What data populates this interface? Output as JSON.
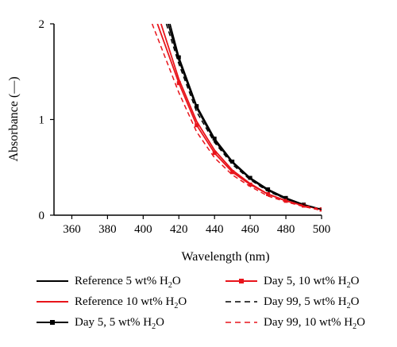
{
  "chart_data": {
    "type": "line",
    "xlabel": "Wavelength (nm)",
    "ylabel": "Absorbance (—)",
    "xlim": [
      350,
      500
    ],
    "ylim": [
      0,
      2
    ],
    "xticks": [
      360,
      380,
      400,
      420,
      440,
      460,
      480,
      500
    ],
    "yticks": [
      0,
      1,
      2
    ],
    "grid": false,
    "legend_position": "bottom",
    "series": [
      {
        "name": "Reference 5 wt% H2O",
        "color": "#000000",
        "dash": "solid",
        "marker": "none",
        "x": [
          414,
          420,
          430,
          440,
          450,
          460,
          470,
          480,
          490,
          500
        ],
        "y": [
          2.0,
          1.62,
          1.12,
          0.78,
          0.55,
          0.38,
          0.26,
          0.17,
          0.11,
          0.06
        ]
      },
      {
        "name": "Reference 10 wt% H2O",
        "color": "#e8141b",
        "dash": "solid",
        "marker": "none",
        "x": [
          410,
          420,
          430,
          440,
          450,
          460,
          470,
          480,
          490,
          500
        ],
        "y": [
          2.0,
          1.42,
          0.98,
          0.68,
          0.47,
          0.33,
          0.22,
          0.15,
          0.1,
          0.06
        ]
      },
      {
        "name": "Day 5, 5 wt% H2O",
        "color": "#000000",
        "dash": "solid",
        "marker": "square",
        "x": [
          415,
          420,
          430,
          440,
          450,
          460,
          470,
          480,
          490,
          500
        ],
        "y": [
          2.0,
          1.65,
          1.14,
          0.8,
          0.56,
          0.39,
          0.27,
          0.18,
          0.11,
          0.06
        ]
      },
      {
        "name": "Day 5, 10 wt% H2O",
        "color": "#e8141b",
        "dash": "solid",
        "marker": "square",
        "x": [
          408,
          420,
          430,
          440,
          450,
          460,
          470,
          480,
          490,
          500
        ],
        "y": [
          2.0,
          1.38,
          0.94,
          0.65,
          0.45,
          0.32,
          0.22,
          0.15,
          0.1,
          0.06
        ]
      },
      {
        "name": "Day 99, 5 wt% H2O",
        "color": "#000000",
        "dash": "dashed",
        "marker": "none",
        "x": [
          413,
          420,
          430,
          440,
          450,
          460,
          470,
          480,
          490,
          500
        ],
        "y": [
          2.0,
          1.58,
          1.08,
          0.76,
          0.53,
          0.37,
          0.25,
          0.17,
          0.11,
          0.06
        ]
      },
      {
        "name": "Day 99, 10 wt% H2O",
        "color": "#e8141b",
        "dash": "dashed",
        "marker": "none",
        "x": [
          405,
          420,
          430,
          440,
          450,
          460,
          470,
          480,
          490,
          500
        ],
        "y": [
          2.0,
          1.28,
          0.87,
          0.6,
          0.42,
          0.3,
          0.2,
          0.14,
          0.09,
          0.05
        ]
      }
    ]
  },
  "legend": [
    {
      "prefix": "Reference 5 wt% H",
      "sub": "2",
      "suffix": "O"
    },
    {
      "prefix": "Reference 10 wt% H",
      "sub": "2",
      "suffix": "O"
    },
    {
      "prefix": "Day 5, 5 wt% H",
      "sub": "2",
      "suffix": "O"
    },
    {
      "prefix": "Day 5, 10 wt% H",
      "sub": "2",
      "suffix": "O"
    },
    {
      "prefix": "Day 99, 5 wt% H",
      "sub": "2",
      "suffix": "O"
    },
    {
      "prefix": "Day 99, 10 wt% H",
      "sub": "2",
      "suffix": "O"
    }
  ]
}
